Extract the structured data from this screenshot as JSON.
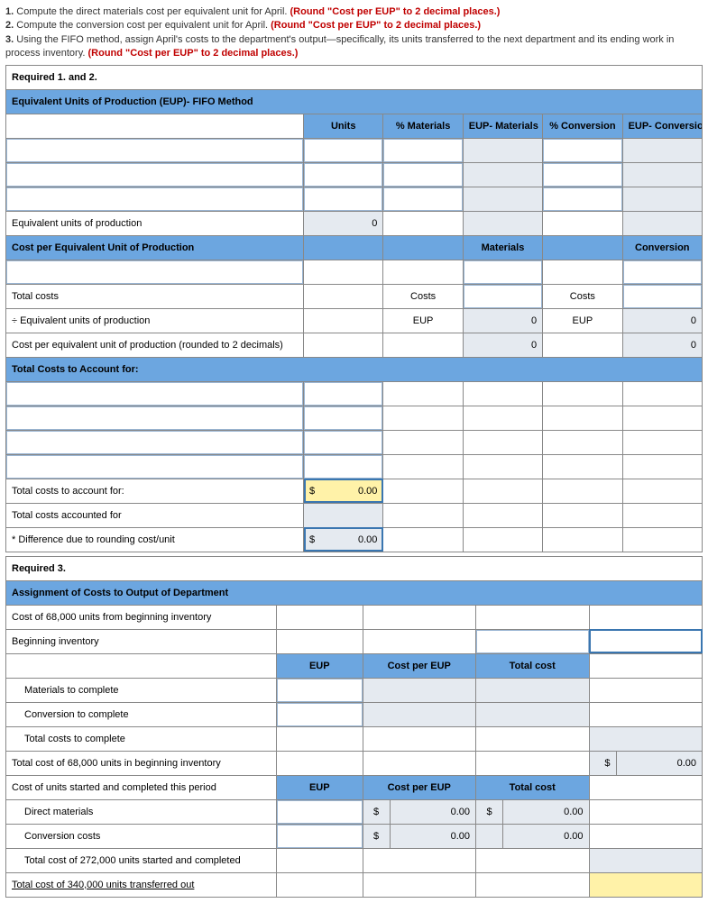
{
  "intro": {
    "q1_a": "1.",
    "q1_b": " Compute the direct materials cost per equivalent unit for April. ",
    "q1_c": "(Round \"Cost per EUP\" to 2 decimal places.)",
    "q2_a": "2.",
    "q2_b": " Compute the conversion cost per equivalent unit for April. ",
    "q2_c": "(Round \"Cost per EUP\" to 2 decimal places.)",
    "q3_a": "3.",
    "q3_b": " Using the FIFO method, assign April's costs to the department's output—specifically, its units transferred to the next department and its ending work in process inventory. ",
    "q3_c": "(Round \"Cost per EUP\" to 2 decimal places.)"
  },
  "s1": {
    "req": "Required 1. and 2.",
    "title": "Equivalent Units of Production (EUP)- FIFO Method",
    "h_units": "Units",
    "h_pmat": "% Materials",
    "h_eup_mat": "EUP- Materials",
    "h_pconv": "% Conversion",
    "h_eup_conv": "EUP- Conversion",
    "eup_row": "Equivalent units of production",
    "eup_units": "0",
    "cpe_title": "Cost per Equivalent Unit of Production",
    "h_mat": "Materials",
    "h_conv": "Conversion",
    "total_costs": "Total costs",
    "costs_lbl": "Costs",
    "div_eup": "÷ Equivalent units of production",
    "eup_lbl": "EUP",
    "eup_mat_v": "0",
    "eup_conv_v": "0",
    "cpe_row": "Cost per equivalent unit of production (rounded to 2 decimals)",
    "cpe_mat_v": "0",
    "cpe_conv_v": "0",
    "tca_title": "Total Costs to Account for:",
    "tca_row": "Total costs to account for:",
    "tca_sym": "$",
    "tca_val": "0.00",
    "tcaf_row": "Total costs accounted for",
    "diff_row": "* Difference due to rounding cost/unit",
    "diff_sym": "$",
    "diff_val": "0.00"
  },
  "s3": {
    "req": "Required 3.",
    "title": "Assignment of Costs to Output of Department",
    "r1": "Cost of 68,000 units from beginning inventory",
    "r2": "Beginning inventory",
    "h_eup": "EUP",
    "h_cpe": "Cost per EUP",
    "h_tc": "Total cost",
    "r3": "Materials to complete",
    "r4": "Conversion to complete",
    "r5": "Total costs to complete",
    "r6": "Total cost of 68,000 units in beginning inventory",
    "r6_sym": "$",
    "r6_val": "0.00",
    "r7": "Cost of units started and completed this period",
    "r8": "Direct materials",
    "r8_sym1": "$",
    "r8_v1": "0.00",
    "r8_sym2": "$",
    "r8_v2": "0.00",
    "r9": "Conversion costs",
    "r9_sym1": "$",
    "r9_v1": "0.00",
    "r9_v2": "0.00",
    "r10": "Total cost of 272,000 units started and completed",
    "r11": "Total cost of 340,000 units transferred out"
  },
  "colors": {
    "blue": "#6ca6e0",
    "shade": "#e5eaf0",
    "yellow": "#fff2a8",
    "red": "#c00000"
  }
}
